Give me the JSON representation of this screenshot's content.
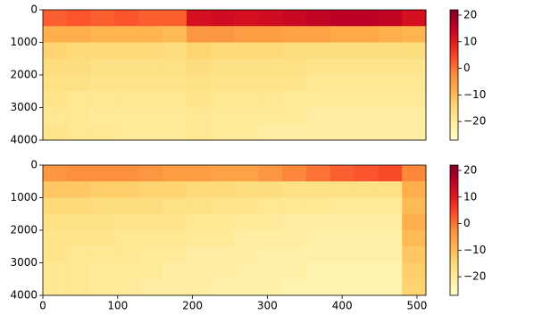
{
  "chart_data": [
    {
      "type": "heatmap",
      "colormap": [
        "#ffffcc",
        "#ffeda0",
        "#fed976",
        "#feb24c",
        "#fd8d3c",
        "#fc4e2a",
        "#e31a1c",
        "#bd0026",
        "#800026"
      ],
      "xlim": [
        0,
        512
      ],
      "ylim": [
        4000,
        0
      ],
      "yticks": [
        0,
        1000,
        2000,
        3000,
        4000
      ],
      "clim": [
        -27,
        22
      ],
      "cticks": [
        {
          "value": 20,
          "label": "20"
        },
        {
          "value": 10,
          "label": "10"
        },
        {
          "value": 0,
          "label": "0"
        },
        {
          "value": -10,
          "label": "−10"
        },
        {
          "value": -20,
          "label": "−20"
        }
      ],
      "z": [
        [
          2,
          3,
          2,
          3,
          2,
          2,
          12,
          13,
          12,
          13,
          14,
          15,
          16,
          16,
          15,
          12
        ],
        [
          -8,
          -8,
          -9,
          -9,
          -9,
          -10,
          -4,
          -4,
          -5,
          -5,
          -6,
          -6,
          -7,
          -7,
          -8,
          -9
        ],
        [
          -14,
          -15,
          -15,
          -15,
          -15,
          -16,
          -14,
          -15,
          -15,
          -15,
          -16,
          -16,
          -16,
          -16,
          -16,
          -16
        ],
        [
          -16,
          -16,
          -17,
          -17,
          -17,
          -17,
          -16,
          -17,
          -17,
          -17,
          -17,
          -18,
          -18,
          -18,
          -18,
          -18
        ],
        [
          -17,
          -17,
          -18,
          -18,
          -18,
          -18,
          -17,
          -18,
          -18,
          -18,
          -18,
          -19,
          -19,
          -19,
          -19,
          -19
        ],
        [
          -18,
          -19,
          -19,
          -19,
          -19,
          -19,
          -18,
          -19,
          -19,
          -19,
          -20,
          -20,
          -20,
          -20,
          -20,
          -20
        ],
        [
          -19,
          -19,
          -20,
          -20,
          -20,
          -20,
          -19,
          -20,
          -20,
          -20,
          -20,
          -21,
          -21,
          -21,
          -21,
          -21
        ],
        [
          -18,
          -19,
          -19,
          -20,
          -20,
          -20,
          -19,
          -20,
          -20,
          -21,
          -21,
          -21,
          -21,
          -21,
          -21,
          -21
        ]
      ]
    },
    {
      "type": "heatmap",
      "colormap": [
        "#ffffcc",
        "#ffeda0",
        "#fed976",
        "#feb24c",
        "#fd8d3c",
        "#fc4e2a",
        "#e31a1c",
        "#bd0026",
        "#800026"
      ],
      "xlim": [
        0,
        512
      ],
      "xticks": [
        0,
        100,
        200,
        300,
        400,
        500
      ],
      "ylim": [
        4000,
        0
      ],
      "yticks": [
        0,
        1000,
        2000,
        3000,
        4000
      ],
      "clim": [
        -27,
        22
      ],
      "cticks": [
        {
          "value": 20,
          "label": "20"
        },
        {
          "value": 10,
          "label": "10"
        },
        {
          "value": 0,
          "label": "0"
        },
        {
          "value": -10,
          "label": "−10"
        },
        {
          "value": -20,
          "label": "−20"
        }
      ],
      "z": [
        [
          -4,
          -3,
          -3,
          -3,
          -4,
          -5,
          -5,
          -6,
          -6,
          -4,
          -2,
          0,
          2,
          3,
          4,
          -2
        ],
        [
          -12,
          -12,
          -13,
          -13,
          -14,
          -14,
          -15,
          -15,
          -16,
          -16,
          -17,
          -17,
          -17,
          -17,
          -17,
          -8
        ],
        [
          -15,
          -15,
          -16,
          -16,
          -16,
          -17,
          -17,
          -18,
          -18,
          -19,
          -19,
          -19,
          -20,
          -20,
          -20,
          -10
        ],
        [
          -17,
          -17,
          -17,
          -18,
          -18,
          -18,
          -19,
          -19,
          -20,
          -20,
          -21,
          -21,
          -21,
          -21,
          -21,
          -8
        ],
        [
          -18,
          -18,
          -18,
          -19,
          -19,
          -19,
          -20,
          -20,
          -21,
          -21,
          -21,
          -22,
          -22,
          -22,
          -22,
          -10
        ],
        [
          -18,
          -19,
          -19,
          -19,
          -20,
          -20,
          -21,
          -21,
          -21,
          -22,
          -22,
          -22,
          -22,
          -22,
          -22,
          -12
        ],
        [
          -19,
          -19,
          -20,
          -20,
          -20,
          -21,
          -21,
          -21,
          -22,
          -22,
          -22,
          -23,
          -23,
          -23,
          -23,
          -13
        ],
        [
          -19,
          -19,
          -20,
          -20,
          -21,
          -21,
          -21,
          -22,
          -22,
          -22,
          -23,
          -23,
          -23,
          -23,
          -23,
          -14
        ]
      ]
    }
  ]
}
